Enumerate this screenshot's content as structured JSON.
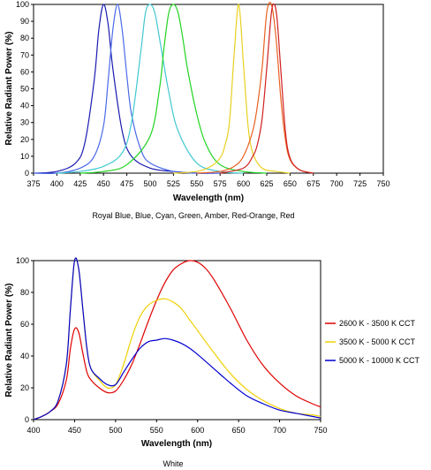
{
  "chart_data": [
    {
      "type": "line",
      "caption": "Royal Blue, Blue, Cyan, Green, Amber, Red-Orange, Red",
      "xlabel": "Wavelength (nm)",
      "ylabel": "Relative Radiant Power (%)",
      "xlim": [
        375,
        750
      ],
      "ylim": [
        0,
        100
      ],
      "xticks": [
        375,
        400,
        425,
        450,
        475,
        500,
        525,
        550,
        575,
        600,
        625,
        650,
        675,
        700,
        725,
        750
      ],
      "yticks": [
        0,
        10,
        20,
        30,
        40,
        50,
        60,
        70,
        80,
        90,
        100
      ],
      "grid": false,
      "legend": "none",
      "series": [
        {
          "color": "#1a1ab0",
          "x": [
            375,
            400,
            420,
            430,
            440,
            445,
            450,
            455,
            460,
            470,
            480,
            500,
            525,
            550,
            575
          ],
          "y": [
            0,
            1,
            6,
            18,
            55,
            85,
            100,
            88,
            62,
            25,
            10,
            3,
            1,
            0,
            0
          ]
        },
        {
          "color": "#4a6ae8",
          "x": [
            375,
            400,
            425,
            440,
            450,
            455,
            460,
            465,
            470,
            475,
            480,
            490,
            500,
            525,
            550,
            575
          ],
          "y": [
            0,
            0,
            3,
            10,
            28,
            55,
            85,
            100,
            85,
            58,
            35,
            14,
            6,
            1,
            0,
            0
          ]
        },
        {
          "color": "#40c8d0",
          "x": [
            400,
            425,
            450,
            470,
            480,
            490,
            495,
            500,
            505,
            510,
            520,
            530,
            550,
            575,
            600
          ],
          "y": [
            0,
            1,
            4,
            12,
            30,
            72,
            95,
            100,
            95,
            80,
            48,
            25,
            6,
            1,
            0
          ]
        },
        {
          "color": "#22d322",
          "x": [
            425,
            450,
            475,
            500,
            510,
            515,
            520,
            525,
            530,
            535,
            540,
            550,
            560,
            575,
            600,
            625
          ],
          "y": [
            0,
            1,
            5,
            22,
            50,
            75,
            95,
            100,
            95,
            80,
            62,
            35,
            17,
            5,
            1,
            0
          ]
        },
        {
          "color": "#e8d020",
          "x": [
            525,
            550,
            565,
            575,
            580,
            585,
            590,
            595,
            600,
            605,
            610,
            620,
            635,
            650
          ],
          "y": [
            0,
            1,
            4,
            9,
            16,
            30,
            70,
            100,
            65,
            28,
            12,
            3,
            1,
            0
          ]
        },
        {
          "color": "#e86020",
          "x": [
            550,
            575,
            590,
            600,
            610,
            615,
            620,
            625,
            630,
            635,
            640,
            645,
            650,
            660,
            675
          ],
          "y": [
            0,
            1,
            4,
            10,
            25,
            40,
            62,
            95,
            100,
            80,
            45,
            20,
            8,
            2,
            0
          ]
        },
        {
          "color": "#d02020",
          "x": [
            575,
            600,
            610,
            615,
            620,
            625,
            630,
            633,
            636,
            640,
            645,
            650,
            660,
            675
          ],
          "y": [
            0,
            3,
            10,
            17,
            32,
            62,
            95,
            100,
            92,
            62,
            25,
            9,
            2,
            0
          ]
        }
      ]
    },
    {
      "type": "line",
      "caption": "White",
      "xlabel": "Wavelength (nm)",
      "ylabel": "Relative Radiant Power (%)",
      "xlim": [
        400,
        750
      ],
      "ylim": [
        0,
        100
      ],
      "xticks": [
        400,
        450,
        500,
        550,
        600,
        650,
        700,
        750
      ],
      "yticks": [
        0,
        20,
        40,
        60,
        80,
        100
      ],
      "grid": false,
      "legend": "right",
      "series": [
        {
          "name": "2600 K - 3500 K CCT",
          "color": "#e00000",
          "x": [
            400,
            410,
            420,
            430,
            440,
            445,
            450,
            455,
            460,
            465,
            470,
            480,
            490,
            500,
            510,
            520,
            530,
            540,
            550,
            560,
            570,
            580,
            590,
            600,
            610,
            620,
            640,
            660,
            680,
            700,
            720,
            740,
            750
          ],
          "y": [
            0,
            2,
            5,
            10,
            25,
            45,
            57,
            55,
            42,
            30,
            25,
            20,
            17,
            18,
            25,
            35,
            48,
            62,
            75,
            86,
            94,
            98,
            100,
            99,
            95,
            88,
            70,
            50,
            34,
            23,
            15,
            10,
            8
          ]
        },
        {
          "name": "3500 K - 5000 K CCT",
          "color": "#f0d000",
          "x": [
            400,
            410,
            420,
            430,
            440,
            445,
            450,
            455,
            460,
            465,
            470,
            480,
            490,
            500,
            510,
            520,
            530,
            540,
            550,
            560,
            570,
            580,
            590,
            600,
            620,
            640,
            660,
            680,
            700,
            720,
            740,
            750
          ],
          "y": [
            0,
            2,
            5,
            12,
            35,
            70,
            100,
            95,
            70,
            45,
            32,
            25,
            20,
            22,
            35,
            52,
            65,
            72,
            75,
            76,
            74,
            70,
            63,
            56,
            42,
            29,
            19,
            12,
            7,
            4,
            3,
            2
          ]
        },
        {
          "name": "5000 K - 10000 K CCT",
          "color": "#0000d0",
          "x": [
            400,
            410,
            420,
            430,
            440,
            445,
            450,
            455,
            460,
            465,
            470,
            480,
            490,
            500,
            510,
            520,
            530,
            540,
            550,
            560,
            570,
            580,
            590,
            600,
            620,
            640,
            660,
            680,
            700,
            720,
            740,
            750
          ],
          "y": [
            0,
            2,
            5,
            12,
            35,
            70,
            100,
            95,
            70,
            45,
            32,
            26,
            22,
            22,
            30,
            38,
            45,
            49,
            50,
            51,
            50,
            48,
            45,
            41,
            32,
            23,
            15,
            10,
            6,
            4,
            2,
            1
          ]
        }
      ]
    }
  ]
}
